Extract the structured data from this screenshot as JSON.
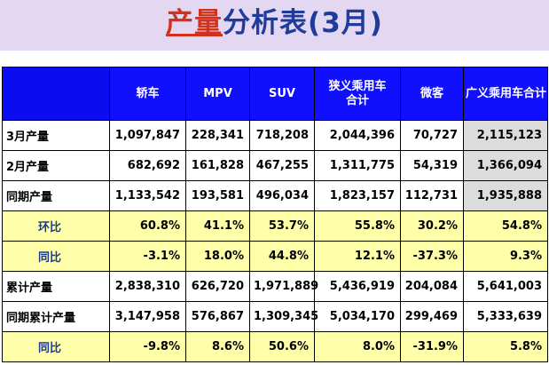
{
  "title": {
    "highlight": "产量",
    "rest": "分析表(3月)"
  },
  "table": {
    "headers": [
      "",
      "轿车",
      "MPV",
      "SUV",
      "狭义乘用车\n合计",
      "微客",
      "广义乘用车合计"
    ],
    "rows": [
      {
        "kind": "plain",
        "label": "3月产量",
        "cells": [
          {
            "v": "1,097,847"
          },
          {
            "v": "228,341"
          },
          {
            "v": "718,208"
          },
          {
            "v": "2,044,396"
          },
          {
            "v": "70,727"
          },
          {
            "v": "2,115,123",
            "gray": true
          }
        ]
      },
      {
        "kind": "plain",
        "label": "2月产量",
        "cells": [
          {
            "v": "682,692"
          },
          {
            "v": "161,828"
          },
          {
            "v": "467,255"
          },
          {
            "v": "1,311,775"
          },
          {
            "v": "54,319"
          },
          {
            "v": "1,366,094",
            "gray": true
          }
        ]
      },
      {
        "kind": "plain",
        "label": "同期产量",
        "cells": [
          {
            "v": "1,133,542"
          },
          {
            "v": "193,581"
          },
          {
            "v": "496,034"
          },
          {
            "v": "1,823,157"
          },
          {
            "v": "112,731"
          },
          {
            "v": "1,935,888",
            "gray": true
          }
        ]
      },
      {
        "kind": "ratio",
        "label": "环比",
        "cells": [
          {
            "v": "60.8%",
            "tone": "pos"
          },
          {
            "v": "41.1%",
            "tone": "pos"
          },
          {
            "v": "53.7%",
            "tone": "pos"
          },
          {
            "v": "55.8%",
            "tone": "pos"
          },
          {
            "v": "30.2%",
            "tone": "pos"
          },
          {
            "v": "54.8%",
            "tone": "pos"
          }
        ]
      },
      {
        "kind": "ratio",
        "label": "同比",
        "cells": [
          {
            "v": "-3.1%",
            "tone": "neg"
          },
          {
            "v": "18.0%",
            "tone": "pos"
          },
          {
            "v": "44.8%",
            "tone": "pos"
          },
          {
            "v": "12.1%",
            "tone": "pos"
          },
          {
            "v": "-37.3%",
            "tone": "neg"
          },
          {
            "v": "9.3%",
            "tone": "pos"
          }
        ]
      },
      {
        "kind": "plain",
        "label": "累计产量",
        "cells": [
          {
            "v": "2,838,310"
          },
          {
            "v": "626,720"
          },
          {
            "v": "1,971,889"
          },
          {
            "v": "5,436,919"
          },
          {
            "v": "204,084"
          },
          {
            "v": "5,641,003"
          }
        ]
      },
      {
        "kind": "plain",
        "label": "同期累计产量",
        "cells": [
          {
            "v": "3,147,958"
          },
          {
            "v": "576,867"
          },
          {
            "v": "1,309,345"
          },
          {
            "v": "5,034,170"
          },
          {
            "v": "299,469"
          },
          {
            "v": "5,333,639"
          }
        ]
      },
      {
        "kind": "ratio",
        "label": "同比",
        "cells": [
          {
            "v": "-9.8%",
            "tone": "neg"
          },
          {
            "v": "8.6%",
            "tone": "pos"
          },
          {
            "v": "50.6%",
            "tone": "pos"
          },
          {
            "v": "8.0%",
            "tone": "pos"
          },
          {
            "v": "-31.9%",
            "tone": "neg"
          },
          {
            "v": "5.8%",
            "tone": "pos"
          }
        ]
      }
    ]
  },
  "colors": {
    "title": "#1f3b9c",
    "title_highlight": "#d2321b",
    "title_band": "#e3d7f1",
    "header_bg": "#1010ff",
    "ratio_row_bg": "#ffffaa",
    "positive": "#1a9a16",
    "negative": "#e52a18",
    "gray_cell": "#dcdcdc"
  }
}
